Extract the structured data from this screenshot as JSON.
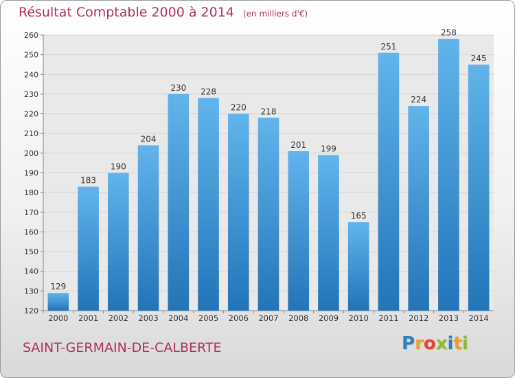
{
  "header": {
    "title": "Résultat Comptable 2000 à 2014",
    "unit": "(en milliers d'€)"
  },
  "footer": {
    "commune": "SAINT-GERMAIN-DE-CALBERTE",
    "logo_letters": [
      {
        "ch": "P",
        "color": "#2e7fc1"
      },
      {
        "ch": "r",
        "color": "#f0a01e"
      },
      {
        "ch": "o",
        "color": "#e8403a"
      },
      {
        "ch": "x",
        "color": "#8bbd2a"
      },
      {
        "ch": "i",
        "color": "#2e7fc1"
      },
      {
        "ch": "t",
        "color": "#f0a01e"
      },
      {
        "ch": "i",
        "color": "#8bbd2a"
      }
    ]
  },
  "colors": {
    "bar_top": "#62b4ec",
    "bar_bottom": "#2374b8",
    "title": "#b0305d",
    "grid": "#d4d4d4",
    "plot_bg": "#e9e9e9"
  },
  "chart_data": {
    "type": "bar",
    "title": "Résultat Comptable 2000 à 2014",
    "subtitle": "(en milliers d'€)",
    "categories": [
      "2000",
      "2001",
      "2002",
      "2003",
      "2004",
      "2005",
      "2006",
      "2007",
      "2008",
      "2009",
      "2010",
      "2011",
      "2012",
      "2013",
      "2014"
    ],
    "values": [
      129,
      183,
      190,
      204,
      230,
      228,
      220,
      218,
      201,
      199,
      165,
      251,
      224,
      258,
      245
    ],
    "data_labels": [
      "129",
      "183",
      "190",
      "204",
      "230",
      "228",
      "220",
      "218",
      "201",
      "199",
      "165",
      "251",
      "224",
      "258",
      "245"
    ],
    "ylim": [
      120,
      260
    ],
    "yticks": [
      120,
      130,
      140,
      150,
      160,
      170,
      180,
      190,
      200,
      210,
      220,
      230,
      240,
      250,
      260
    ],
    "grid": true,
    "xlabel": "",
    "ylabel": ""
  }
}
